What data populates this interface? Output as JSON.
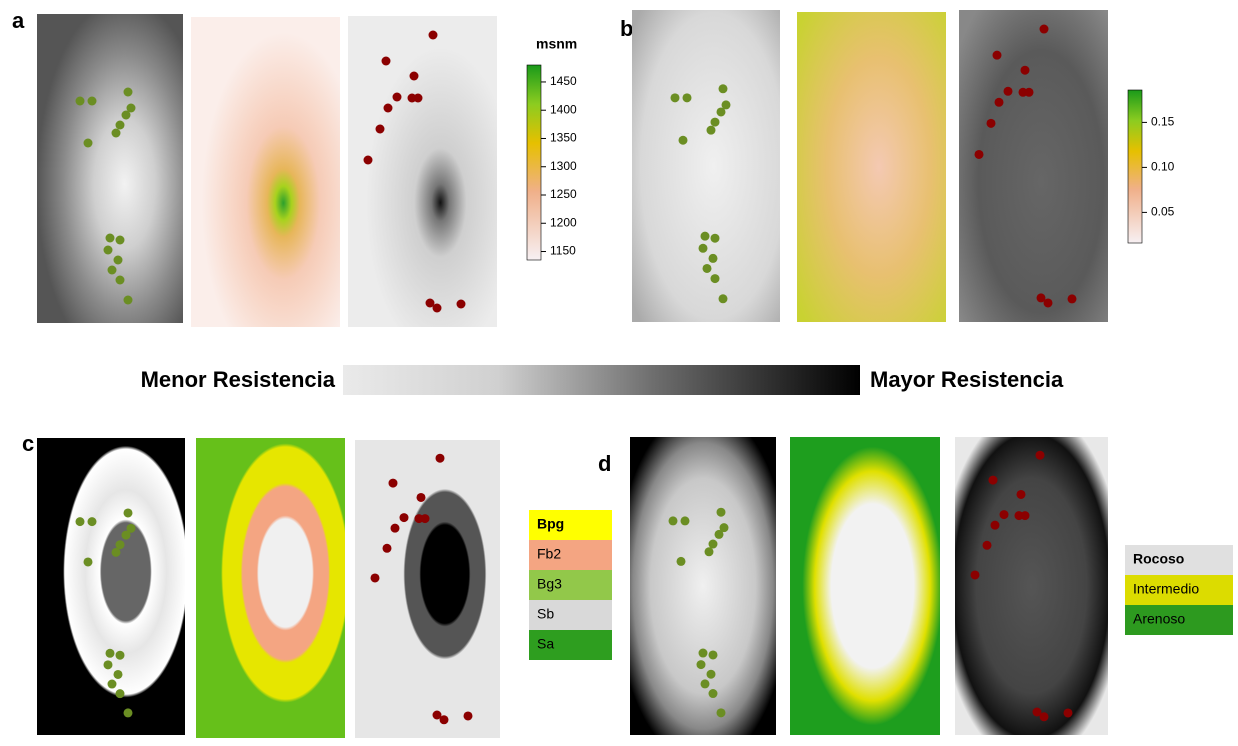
{
  "panels": [
    {
      "label": "a",
      "colorbar": {
        "title": "msnm",
        "ylim": [
          1135,
          1480
        ],
        "yticks": [
          1150,
          1200,
          1250,
          1300,
          1350,
          1400,
          1450
        ]
      }
    },
    {
      "label": "b",
      "colorbar": {
        "ylim": [
          0.016,
          0.186
        ],
        "yticks": [
          {
            "value": 0.05,
            "label": "0.05"
          },
          {
            "value": 0.1,
            "label": "0.10"
          },
          {
            "value": 0.15,
            "label": "0.15"
          }
        ]
      }
    },
    {
      "label": "c",
      "legend": [
        {
          "name": "Bpg",
          "color": "#ffff00"
        },
        {
          "name": "Fb2",
          "color": "#f4a582"
        },
        {
          "name": "Bg3",
          "color": "#92c84a"
        },
        {
          "name": "Sb",
          "color": "#d9d9d9"
        },
        {
          "name": "Sa",
          "color": "#2e9e1f"
        }
      ]
    },
    {
      "label": "d",
      "legend": [
        {
          "name": "Rocoso",
          "color": "#e0e0e0"
        },
        {
          "name": "Intermedio",
          "color": "#dcdc00"
        },
        {
          "name": "Arenoso",
          "color": "#2d9a1f"
        }
      ]
    }
  ],
  "scale": {
    "left": "Menor Resistencia",
    "right": "Mayor Resistencia"
  }
}
